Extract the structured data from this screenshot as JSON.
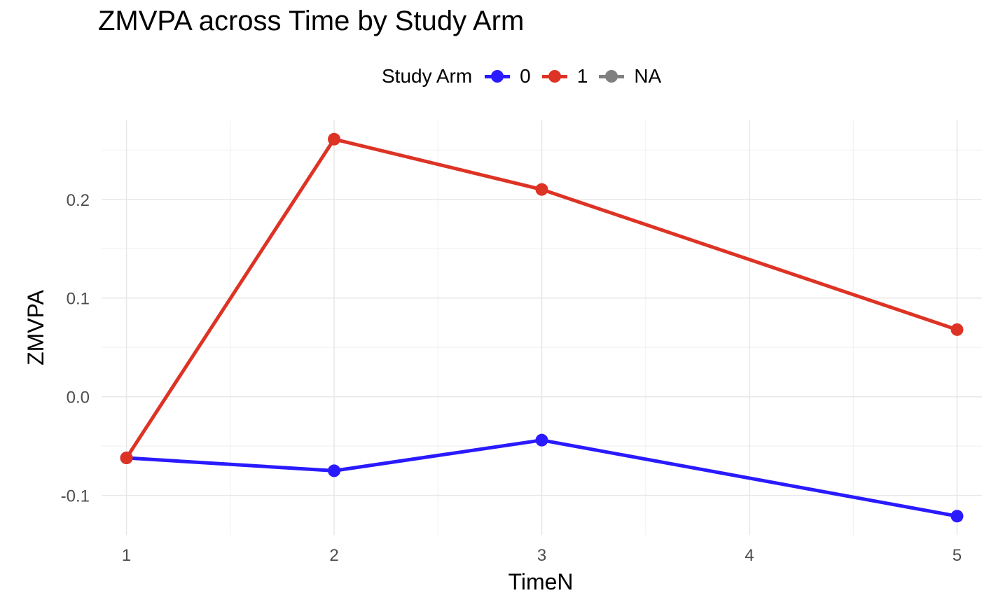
{
  "chart_data": {
    "type": "line",
    "title": "ZMVPA across Time by Study Arm",
    "xlabel": "TimeN",
    "ylabel": "ZMVPA",
    "x": [
      1,
      2,
      3,
      4,
      5
    ],
    "x_ticks": [
      "1",
      "2",
      "3",
      "4",
      "5"
    ],
    "y_ticks": [
      "-0.1",
      "0.0",
      "0.1",
      "0.2"
    ],
    "xlim": [
      0.88,
      5.12
    ],
    "ylim": [
      -0.14,
      0.28
    ],
    "grid": true,
    "legend": {
      "title": "Study Arm",
      "placement": "top",
      "entries": [
        {
          "label": "0",
          "color": "#2a1aff"
        },
        {
          "label": "1",
          "color": "#dd3325"
        },
        {
          "label": "NA",
          "color": "#808080"
        }
      ]
    },
    "series": [
      {
        "name": "0",
        "color": "#2a1aff",
        "x": [
          1,
          2,
          3,
          5
        ],
        "values": [
          -0.062,
          -0.075,
          -0.044,
          -0.121
        ]
      },
      {
        "name": "1",
        "color": "#dd3325",
        "x": [
          1,
          2,
          3,
          5
        ],
        "values": [
          -0.062,
          0.261,
          0.21,
          0.068
        ]
      }
    ]
  }
}
